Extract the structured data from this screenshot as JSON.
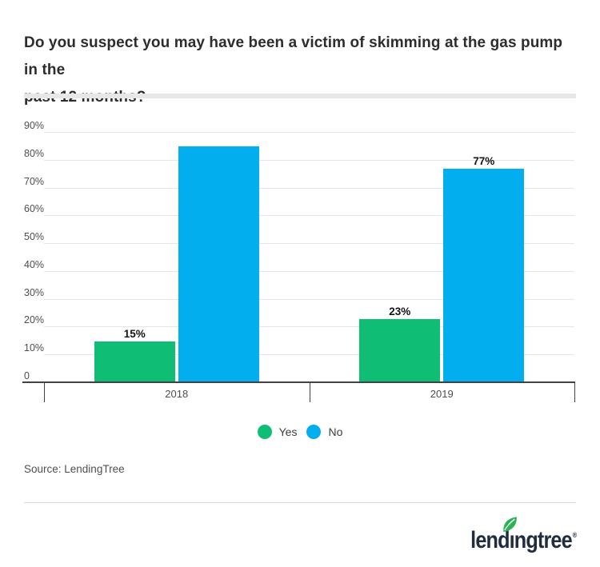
{
  "header": {
    "title_line1": "Do you suspect you may have been a victim of skimming at the gas pump in the",
    "title_line2": "past 12 months?"
  },
  "chart_data": {
    "type": "bar",
    "title": "Do you suspect you may have been a victim of skimming at the gas pump in the past 12 months?",
    "categories": [
      "2018",
      "2019"
    ],
    "series": [
      {
        "name": "Yes",
        "color": "#10bd75",
        "values": [
          15,
          23
        ],
        "data_labels": [
          "15%",
          "23%"
        ]
      },
      {
        "name": "No",
        "color": "#03aeef",
        "values": [
          85,
          77
        ],
        "data_labels": [
          "",
          "77%"
        ]
      }
    ],
    "xlabel": "",
    "ylabel": "",
    "ylim": [
      0,
      90
    ],
    "ytick_labels": [
      "0",
      "10%",
      "20%",
      "30%",
      "40%",
      "50%",
      "60%",
      "70%",
      "80%",
      "90%"
    ],
    "grid": true,
    "legend_position": "bottom"
  },
  "legend": {
    "items": [
      {
        "label": "Yes",
        "color": "#10bd75"
      },
      {
        "label": "No",
        "color": "#03aeef"
      }
    ]
  },
  "source": {
    "text": "Source: LendingTree"
  },
  "footer": {
    "logo_part1": "lend",
    "logo_part_i": "ı",
    "logo_part2": "ngtree",
    "logo_registered": "®",
    "logo_name": "lendingtree",
    "leaf_color": "#2cb157",
    "logo_text_color": "#202c40"
  }
}
